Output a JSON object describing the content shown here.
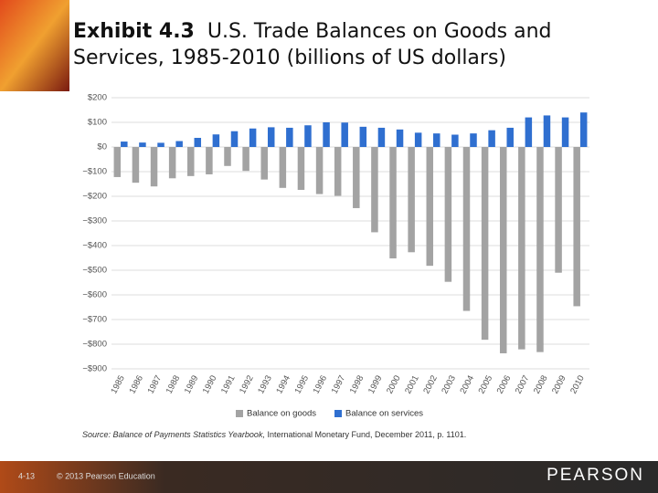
{
  "header": {
    "title_bold": "Exhibit 4.3",
    "title": "U.S. Trade Balances on Goods and Services, 1985-2010 (billions of US dollars)"
  },
  "chart_data": {
    "type": "bar",
    "categories": [
      "1985",
      "1986",
      "1987",
      "1988",
      "1989",
      "1990",
      "1991",
      "1992",
      "1993",
      "1994",
      "1995",
      "1996",
      "1997",
      "1998",
      "1999",
      "2000",
      "2001",
      "2002",
      "2003",
      "2004",
      "2005",
      "2006",
      "2007",
      "2008",
      "2009",
      "2010"
    ],
    "series": [
      {
        "name": "Balance on goods",
        "color": "#a3a3a3",
        "values": [
          -122,
          -145,
          -160,
          -127,
          -118,
          -111,
          -77,
          -97,
          -132,
          -166,
          -174,
          -191,
          -198,
          -248,
          -346,
          -452,
          -427,
          -482,
          -547,
          -665,
          -782,
          -837,
          -821,
          -832,
          -510,
          -646
        ]
      },
      {
        "name": "Balance on services",
        "color": "#2f6fd0",
        "values": [
          22,
          18,
          17,
          24,
          37,
          51,
          64,
          75,
          80,
          78,
          88,
          100,
          99,
          82,
          78,
          71,
          58,
          55,
          50,
          55,
          68,
          78,
          120,
          128,
          120,
          140
        ]
      }
    ],
    "ylim": [
      -900,
      200
    ],
    "yticks": [
      {
        "value": 200,
        "label": "$200"
      },
      {
        "value": 100,
        "label": "$100"
      },
      {
        "value": 0,
        "label": "$0"
      },
      {
        "value": -100,
        "label": "−$100"
      },
      {
        "value": -200,
        "label": "−$200"
      },
      {
        "value": -300,
        "label": "−$300"
      },
      {
        "value": -400,
        "label": "−$400"
      },
      {
        "value": -500,
        "label": "−$500"
      },
      {
        "value": -600,
        "label": "−$600"
      },
      {
        "value": -700,
        "label": "−$700"
      },
      {
        "value": -800,
        "label": "−$800"
      },
      {
        "value": -900,
        "label": "−$900"
      }
    ],
    "grid": true,
    "source_italic": "Source: Balance of Payments Statistics Yearbook,",
    "source_rest": "International Monetary Fund, December 2011, p. 1101."
  },
  "footer": {
    "page": "4-13",
    "copyright": "© 2013 Pearson Education",
    "brand": "PEARSON"
  }
}
